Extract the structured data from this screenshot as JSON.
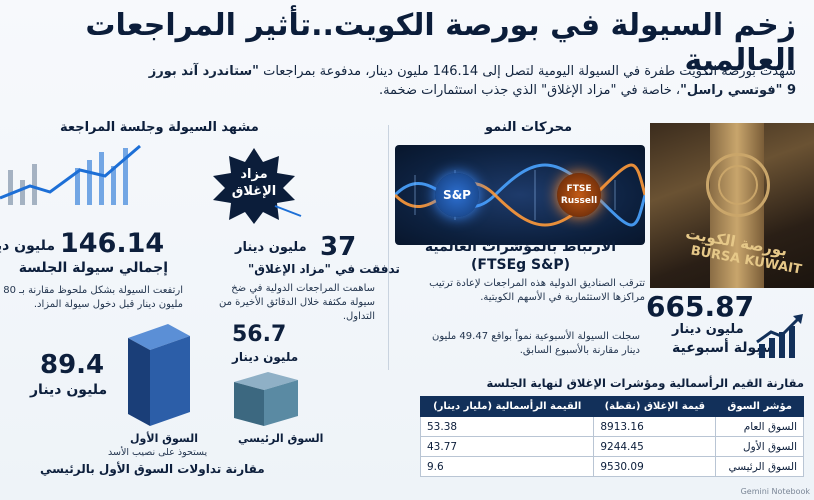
{
  "title": "زخم السيولة في بورصة الكويت..تأثير المراجعات العالمية",
  "intro": {
    "line1_prefix": "شهدت بورصة الكويت طفرة في السيولة اليومية لتصل إلى 146.14 مليون دينار، مدفوعة بمراجعات ",
    "line1_bold": "\"ستاندرد آند بورز",
    "line2_bold": "9 \"فوتسي راسل\"",
    "line2_suffix": "، خاصة في \"مزاد الإغلاق\" الذي جذب استثمارات ضخمة."
  },
  "drivers": {
    "title": "محركات النمو",
    "orb_sp": "S&P",
    "orb_ftse_1": "FTSE",
    "orb_ftse_2": "Russell",
    "link_title_1": "الارتباط بالمؤشرات العالمية",
    "link_title_2": "(FTSEg S&P)",
    "link_desc": "تترقب الصناديق الدولية هذه المراجعات لإعادة ترتيب مراكزها الاستثمارية في الأسهم الكويتية.",
    "weekly_value": "665.87",
    "weekly_unit": "مليون دينار",
    "weekly_label": "سيولة أسبوعية",
    "weekly_desc": "سجلت السيولة الأسبوعية نمواً بواقع 49.47 مليون دينار مقارنة بالأسبوع السابق.",
    "photo_text": "BURSA KUWAIT",
    "photo_text_ar": "بورصة الكويت"
  },
  "table": {
    "title": "مقارنة القيم الرأسمالية ومؤشرات الإغلاق لنهاية الجلسة",
    "headers": [
      "مؤشر السوق",
      "قيمة الإغلاق (نقطة)",
      "القيمة الرأسمالية (مليار دينار)"
    ],
    "rows": [
      [
        "السوق العام",
        "8913.16",
        "53.38"
      ],
      [
        "السوق الأول",
        "9244.45",
        "43.77"
      ],
      [
        "السوق الرئيسي",
        "9530.09",
        "9.6"
      ]
    ]
  },
  "liquidity": {
    "title": "مشهد السيولة وجلسة المراجعة",
    "badge_1": "مزاد",
    "badge_2": "الإغلاق",
    "v37": "37",
    "v37_unit": "مليون دينار",
    "v37_label": "تدفقت في \"مزاد الإغلاق\"",
    "v37_desc": "ساهمت المراجعات الدولية في ضخ سيولة مكثفة خلال الدقائق الأخيرة من التداول.",
    "v146": "146.14",
    "v146_unit": "مليون دينار",
    "v146_label": "إجمالي سيولة الجلسة",
    "v146_desc": "ارتفعت السيولة بشكل ملحوظ مقارنة بـ 80 مليون دينار قبل دخول سيولة المزاد.",
    "v567": "56.7",
    "v567_unit": "مليون دينار",
    "v894": "89.4",
    "v894_unit": "مليون دينار",
    "first_market": "السوق الأول",
    "first_market_sub": "يستحوذ على نصيب الأسد",
    "main_market": "السوق الرئيسي",
    "comparison_caption": "مقارنة تداولات السوق الأول بالرئيسي"
  },
  "watermark": "Gemini Notebook",
  "colors": {
    "navy": "#0b1d3a",
    "table_header": "#12305a",
    "accent_blue": "#1d6fd6",
    "accent_orange": "#ff7a1a"
  }
}
